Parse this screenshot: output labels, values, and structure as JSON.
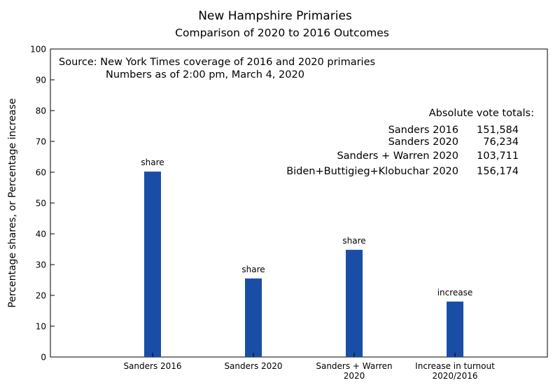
{
  "chart_data": {
    "type": "bar",
    "title": "New Hampshire Primaries",
    "subtitle": "Comparison of 2020 to 2016 Outcomes",
    "ylabel": "Percentage shares, or Percentage increase",
    "xlabel": "",
    "ylim": [
      0,
      100
    ],
    "yticks": [
      0,
      10,
      20,
      30,
      40,
      50,
      60,
      70,
      80,
      90,
      100
    ],
    "categories": [
      "Sanders 2016",
      "Sanders 2020",
      "Sanders + Warren 2020",
      "Increase in turnout 2020/2016"
    ],
    "category_lines": [
      [
        "Sanders 2016"
      ],
      [
        "Sanders 2020"
      ],
      [
        "Sanders + Warren",
        "2020"
      ],
      [
        "Increase in turnout",
        "2020/2016"
      ]
    ],
    "values": [
      60.2,
      25.5,
      34.8,
      18.0
    ],
    "data_labels": [
      "share",
      "share",
      "share",
      "increase"
    ],
    "bar_color": "#1a4ea6",
    "grid": false,
    "annotations": {
      "source_lines": [
        "Source:  New York Times coverage of 2016 and 2020 primaries",
        "Numbers as of 2:00 pm, March 4, 2020"
      ],
      "totals_header": "Absolute vote totals:",
      "totals": [
        {
          "label": "Sanders 2016",
          "value": "151,584"
        },
        {
          "label": "Sanders 2020",
          "value": "76,234"
        },
        {
          "label": "Sanders + Warren 2020",
          "value": "103,711"
        },
        {
          "label": "Biden+Buttigieg+Klobuchar 2020",
          "value": "156,174"
        }
      ]
    }
  }
}
